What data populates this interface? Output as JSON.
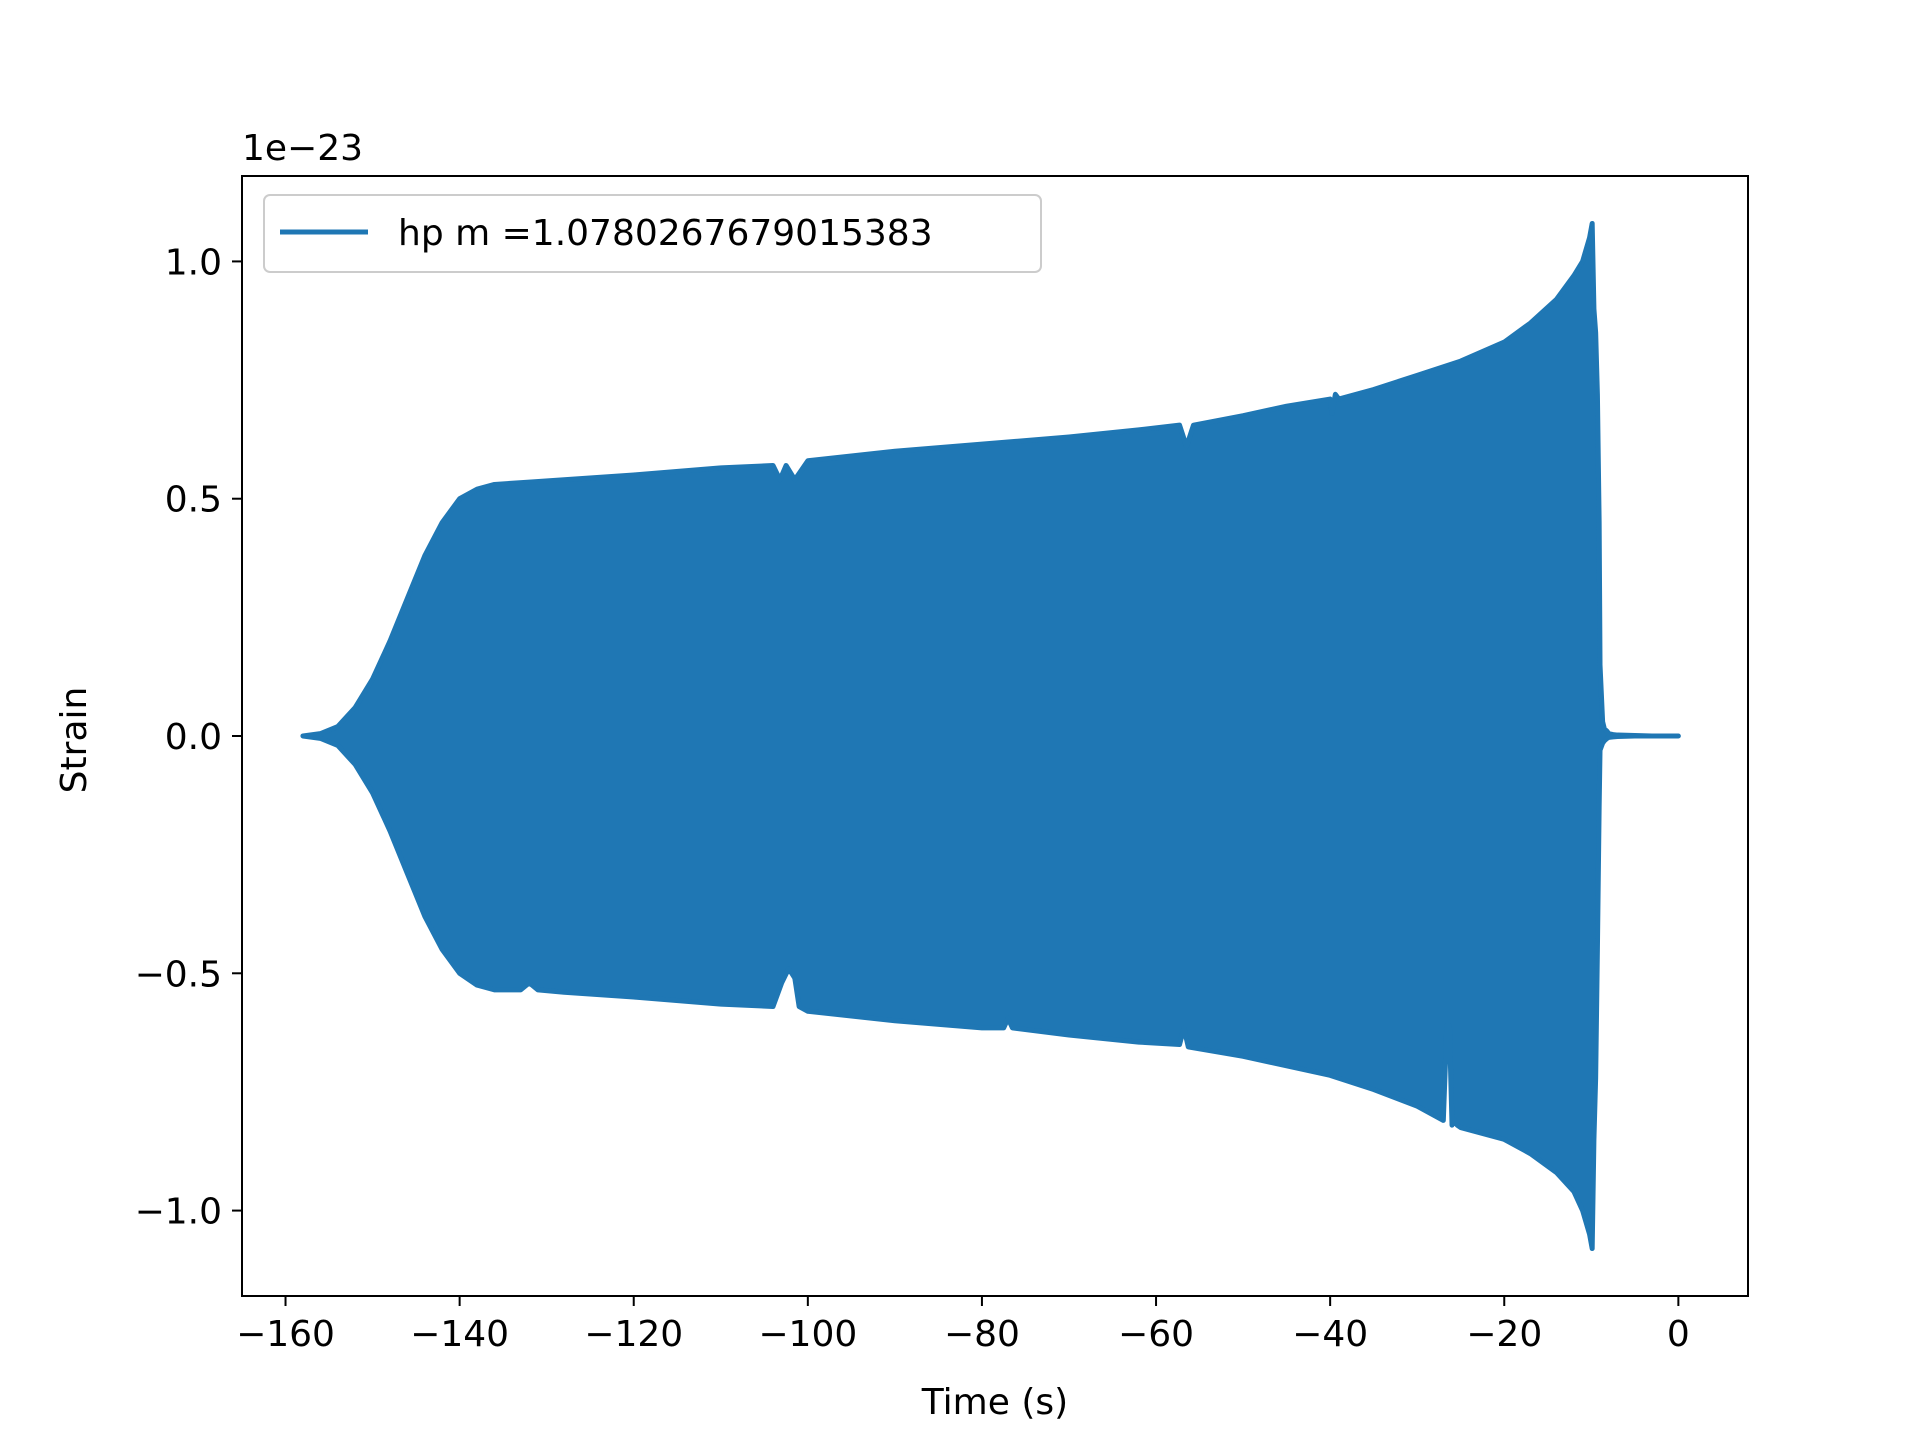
{
  "chart_data": {
    "type": "line",
    "title": "",
    "xlabel": "Time (s)",
    "ylabel": "Strain",
    "y_offset_label": "1e−23",
    "xlim": [
      -165,
      8
    ],
    "ylim": [
      -1.18,
      1.18
    ],
    "xticks": [
      -160,
      -140,
      -120,
      -100,
      -80,
      -60,
      -40,
      -20,
      0
    ],
    "xtick_labels": [
      "−160",
      "−140",
      "−120",
      "−100",
      "−80",
      "−60",
      "−40",
      "−20",
      "0"
    ],
    "yticks": [
      1.0,
      0.5,
      0.0,
      -0.5,
      -1.0
    ],
    "ytick_labels": [
      "1.0",
      "0.5",
      "0.0",
      "−0.5",
      "−1.0"
    ],
    "grid": false,
    "legend_position": "upper-left",
    "series": [
      {
        "name": "hp m =1.0780267679015383",
        "color": "#1f77b4",
        "style": "dense oscillation filling between upper and lower envelope",
        "upper_envelope": {
          "x": [
            -158,
            -156,
            -154,
            -152,
            -150,
            -148,
            -146,
            -144,
            -142,
            -140,
            -138,
            -136,
            -132,
            -128,
            -120,
            -110,
            -104,
            -103.2,
            -102.5,
            -101.5,
            -100,
            -90,
            -80,
            -70,
            -62,
            -57.3,
            -56.5,
            -55.7,
            -50,
            -45,
            -40,
            -39.8,
            -39.4,
            -39,
            -35,
            -30,
            -25,
            -20,
            -17,
            -14,
            -12,
            -11,
            -10.2,
            -9.9,
            -9.7,
            -9.5,
            -9.3,
            -9.1,
            -9.0,
            -8.7,
            -8.5,
            -8.2,
            -8.0,
            -7.5,
            -7.0,
            -5,
            -3,
            0
          ],
          "y": [
            0.0,
            0.005,
            0.02,
            0.06,
            0.12,
            0.2,
            0.29,
            0.38,
            0.45,
            0.5,
            0.52,
            0.53,
            0.535,
            0.54,
            0.55,
            0.565,
            0.57,
            0.54,
            0.57,
            0.54,
            0.58,
            0.6,
            0.615,
            0.63,
            0.645,
            0.655,
            0.61,
            0.655,
            0.675,
            0.695,
            0.71,
            0.68,
            0.72,
            0.71,
            0.73,
            0.76,
            0.79,
            0.83,
            0.87,
            0.92,
            0.97,
            1.0,
            1.05,
            1.08,
            0.9,
            0.85,
            0.72,
            0.45,
            0.15,
            0.03,
            0.015,
            0.01,
            0.005,
            0.003,
            0.002,
            0.001,
            0.0,
            0.0
          ]
        },
        "lower_envelope": {
          "x": [
            -158,
            -156,
            -154,
            -152,
            -150,
            -148,
            -146,
            -144,
            -142,
            -140,
            -138,
            -136,
            -133,
            -132,
            -131,
            -128,
            -120,
            -110,
            -104,
            -103,
            -102.2,
            -101.5,
            -101,
            -100,
            -90,
            -80,
            -77.5,
            -77,
            -76.5,
            -70,
            -62,
            -57.3,
            -56.8,
            -56.3,
            -50,
            -45,
            -40,
            -35,
            -30,
            -27,
            -26.6,
            -26.3,
            -26.0,
            -25.7,
            -25.4,
            -25,
            -20,
            -17,
            -14,
            -12,
            -11,
            -10.2,
            -9.9,
            -9.7,
            -9.5,
            -9.3,
            -9.1,
            -9.0,
            -8.7,
            -8.5,
            -8.2,
            -8.0,
            -7.5,
            -7.0,
            -5,
            -3,
            0
          ],
          "y": [
            0.0,
            -0.005,
            -0.02,
            -0.06,
            -0.12,
            -0.2,
            -0.29,
            -0.38,
            -0.45,
            -0.5,
            -0.525,
            -0.535,
            -0.535,
            -0.52,
            -0.535,
            -0.54,
            -0.55,
            -0.565,
            -0.57,
            -0.52,
            -0.49,
            -0.51,
            -0.57,
            -0.58,
            -0.6,
            -0.615,
            -0.615,
            -0.595,
            -0.615,
            -0.63,
            -0.645,
            -0.65,
            -0.615,
            -0.655,
            -0.675,
            -0.695,
            -0.715,
            -0.745,
            -0.78,
            -0.81,
            -0.61,
            -0.61,
            -0.82,
            -0.81,
            -0.82,
            -0.825,
            -0.85,
            -0.88,
            -0.92,
            -0.96,
            -1.0,
            -1.05,
            -1.08,
            -0.85,
            -0.72,
            -0.45,
            -0.15,
            -0.03,
            -0.015,
            -0.01,
            -0.005,
            -0.003,
            -0.002,
            -0.001,
            0.0,
            0.0,
            0.0
          ]
        }
      }
    ]
  }
}
